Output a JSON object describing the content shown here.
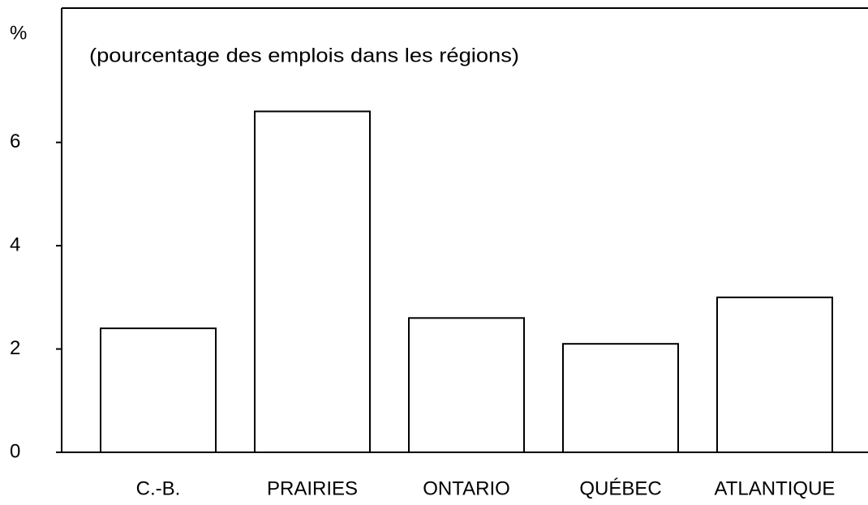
{
  "chart_data": {
    "type": "bar",
    "y_label": "%",
    "annotation": "(pourcentage des emplois dans les régions)",
    "categories": [
      "C.-B.",
      "PRAIRIES",
      "ONTARIO",
      "QUÉBEC",
      "ATLANTIQUE"
    ],
    "values": [
      2.4,
      6.6,
      2.6,
      2.1,
      3.0
    ],
    "color": "#ffffff",
    "ylim": [
      0,
      8.6
    ],
    "yticks": [
      0,
      2,
      4,
      6
    ],
    "grid": false
  }
}
